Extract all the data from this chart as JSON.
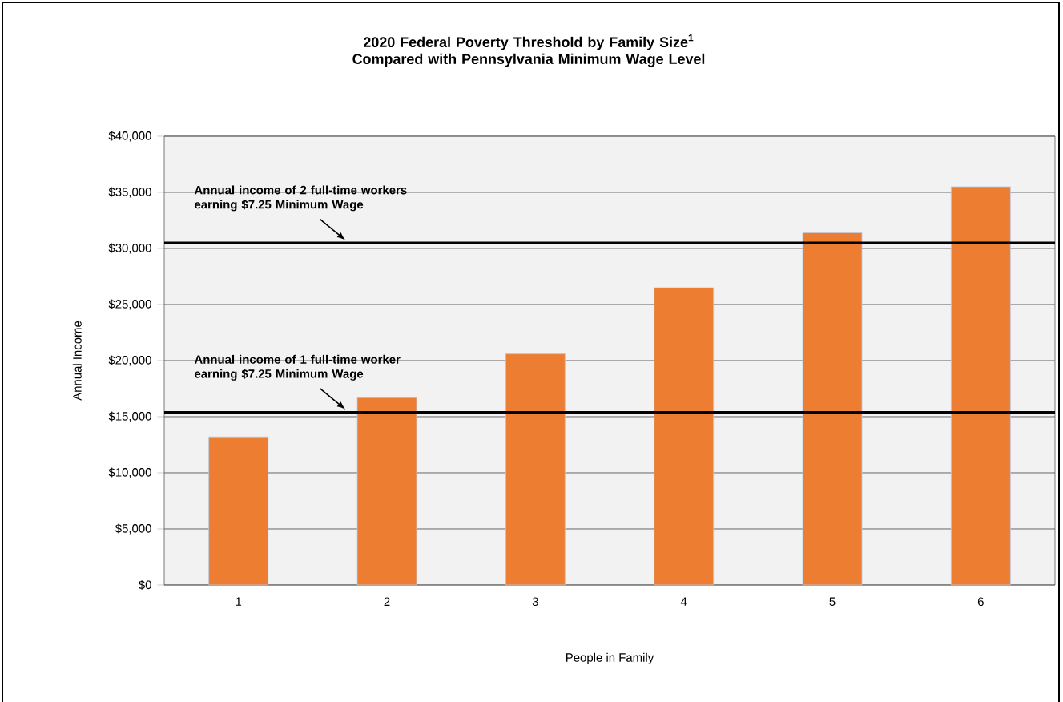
{
  "chart_data": {
    "type": "bar",
    "title": "2020 Federal Poverty Threshold by Family Size$^{1}$",
    "subtitle": "Compared with Pennsylvania Minimum Wage Level",
    "xlabel": "People in Family",
    "ylabel": "Annual Income",
    "categories": [
      "1",
      "2",
      "3",
      "4",
      "5",
      "6"
    ],
    "values": [
      13200,
      16700,
      20600,
      26500,
      31400,
      35500
    ],
    "color": "#ed7d31",
    "ylim": [
      0,
      40000
    ],
    "yticks": [
      {
        "value": 0,
        "label": "$0"
      },
      {
        "value": 5000,
        "label": "$5,000"
      },
      {
        "value": 10000,
        "label": "$10,000"
      },
      {
        "value": 15000,
        "label": "$15,000"
      },
      {
        "value": 20000,
        "label": "$20,000"
      },
      {
        "value": 25000,
        "label": "$25,000"
      },
      {
        "value": 30000,
        "label": "$30,000"
      },
      {
        "value": 35000,
        "label": "$35,000"
      },
      {
        "value": 40000,
        "label": "$40,000"
      }
    ],
    "grid": "y",
    "ref_lines": [
      {
        "axis": "y",
        "value": 30500,
        "label": "Annual income of 2 full-time workers earning $7.25 Minimum Wage",
        "color": "#000000"
      },
      {
        "axis": "y",
        "value": 15400,
        "label": "Annual income of 1 full-time worker earning $7.25 Minimum Wage",
        "color": "#000000"
      }
    ]
  }
}
